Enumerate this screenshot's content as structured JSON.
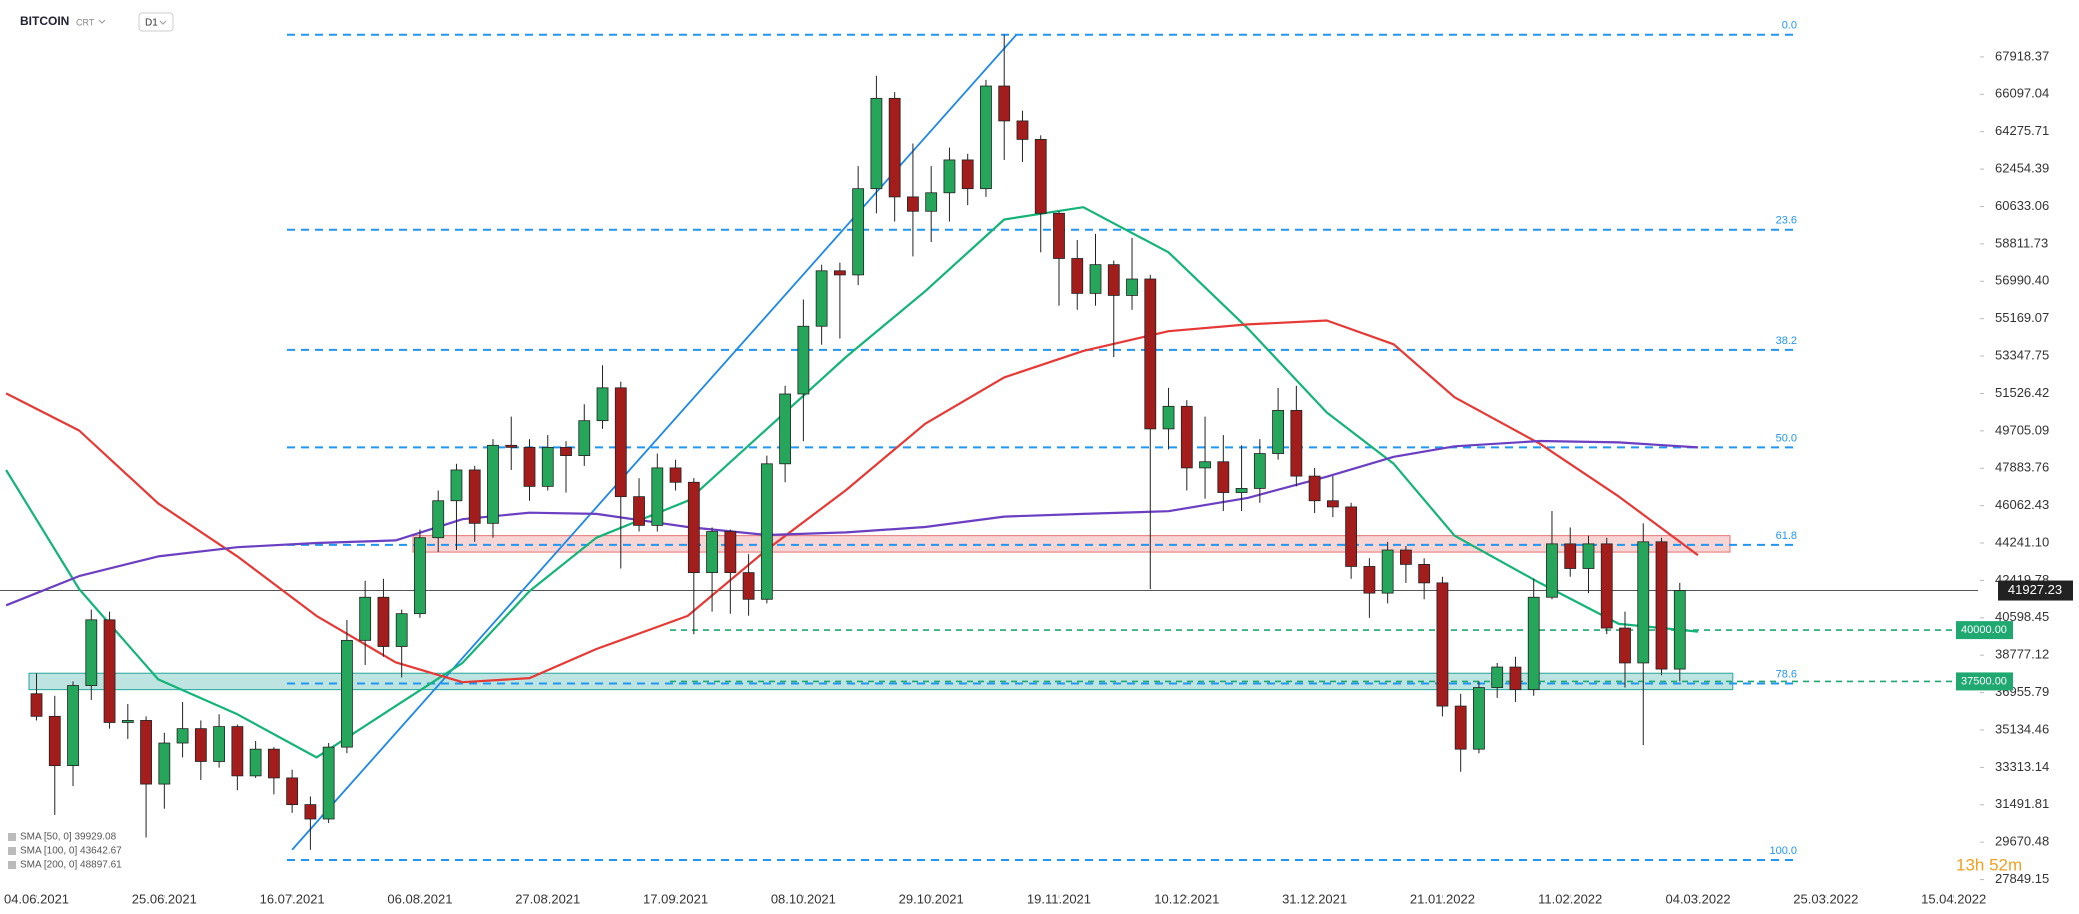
{
  "header": {
    "symbol": "BITCOIN",
    "kind": "CRT",
    "interval": "D1",
    "timer": "13h 52m"
  },
  "chart_data": {
    "type": "candlestick",
    "xlim": [
      "29.05.2021",
      "19.04.2022"
    ],
    "xticks": [
      "04.06.2021",
      "25.06.2021",
      "16.07.2021",
      "06.08.2021",
      "27.08.2021",
      "17.09.2021",
      "08.10.2021",
      "29.10.2021",
      "19.11.2021",
      "10.12.2021",
      "31.12.2021",
      "21.01.2022",
      "11.02.2022",
      "04.03.2022",
      "25.03.2022",
      "15.04.2022"
    ],
    "ylim": [
      27000,
      70690
    ],
    "yticks": [
      27849.15,
      29670.48,
      31491.81,
      33313.14,
      35134.46,
      36955.79,
      38777.12,
      40598.45,
      42419.78,
      {
        "value": 44241.1,
        "label": "44241.10"
      },
      46062.43,
      47883.76,
      49705.09,
      51526.42,
      53347.75,
      55169.07,
      {
        "value": 56990.4,
        "label": "56990.40"
      },
      58811.73,
      60633.06,
      62454.39,
      64275.71,
      66097.04,
      67918.37
    ],
    "up_color": "#26a65b",
    "down_color": "#a31d1d",
    "candles": {
      "dates": [
        "04.06.2021",
        "07.06.2021",
        "10.06.2021",
        "13.06.2021",
        "16.06.2021",
        "19.06.2021",
        "22.06.2021",
        "25.06.2021",
        "28.06.2021",
        "01.07.2021",
        "04.07.2021",
        "07.07.2021",
        "10.07.2021",
        "13.07.2021",
        "16.07.2021",
        "19.07.2021",
        "22.07.2021",
        "25.07.2021",
        "28.07.2021",
        "31.07.2021",
        "03.08.2021",
        "06.08.2021",
        "09.08.2021",
        "12.08.2021",
        "15.08.2021",
        "18.08.2021",
        "21.08.2021",
        "24.08.2021",
        "27.08.2021",
        "30.08.2021",
        "02.09.2021",
        "05.09.2021",
        "08.09.2021",
        "11.09.2021",
        "14.09.2021",
        "17.09.2021",
        "20.09.2021",
        "23.09.2021",
        "26.09.2021",
        "29.09.2021",
        "02.10.2021",
        "05.10.2021",
        "08.10.2021",
        "11.10.2021",
        "14.10.2021",
        "17.10.2021",
        "20.10.2021",
        "23.10.2021",
        "26.10.2021",
        "29.10.2021",
        "01.11.2021",
        "04.11.2021",
        "07.11.2021",
        "10.11.2021",
        "13.11.2021",
        "16.11.2021",
        "19.11.2021",
        "22.11.2021",
        "25.11.2021",
        "28.11.2021",
        "01.12.2021",
        "04.12.2021",
        "07.12.2021",
        "10.12.2021",
        "13.12.2021",
        "16.12.2021",
        "19.12.2021",
        "22.12.2021",
        "25.12.2021",
        "28.12.2021",
        "31.12.2021",
        "03.01.2022",
        "06.01.2022",
        "09.01.2022",
        "12.01.2022",
        "15.01.2022",
        "18.01.2022",
        "21.01.2022",
        "24.01.2022",
        "27.01.2022",
        "30.01.2022",
        "02.02.2022",
        "05.02.2022",
        "08.02.2022",
        "11.02.2022",
        "14.02.2022",
        "17.02.2022",
        "20.02.2022",
        "23.02.2022",
        "26.02.2022",
        "01.03.2022"
      ],
      "ohlc": [
        [
          36900,
          37900,
          35600,
          35800
        ],
        [
          35800,
          36800,
          31000,
          33400
        ],
        [
          33400,
          37500,
          32400,
          37300
        ],
        [
          37300,
          41000,
          36600,
          40500
        ],
        [
          40500,
          40900,
          35200,
          35500
        ],
        [
          35500,
          36400,
          34700,
          35600
        ],
        [
          35600,
          35800,
          29900,
          32500
        ],
        [
          32500,
          35000,
          31300,
          34500
        ],
        [
          34500,
          36500,
          33800,
          35200
        ],
        [
          35200,
          35600,
          32700,
          33600
        ],
        [
          33600,
          35900,
          33300,
          35300
        ],
        [
          35300,
          35400,
          32200,
          32900
        ],
        [
          32900,
          34600,
          32800,
          34200
        ],
        [
          34200,
          34300,
          32000,
          32800
        ],
        [
          32800,
          33200,
          31100,
          31500
        ],
        [
          31500,
          31900,
          29300,
          30800
        ],
        [
          30800,
          34500,
          30600,
          34300
        ],
        [
          34300,
          40500,
          34000,
          39500
        ],
        [
          39500,
          42400,
          38300,
          41600
        ],
        [
          41600,
          42500,
          38700,
          39200
        ],
        [
          39200,
          41000,
          37700,
          40800
        ],
        [
          40800,
          44900,
          40600,
          44500
        ],
        [
          44500,
          46800,
          43800,
          46300
        ],
        [
          46300,
          48100,
          43900,
          47800
        ],
        [
          47800,
          48000,
          44300,
          45200
        ],
        [
          45200,
          49300,
          44500,
          49000
        ],
        [
          49000,
          50400,
          47800,
          48900
        ],
        [
          48900,
          49300,
          46300,
          47000
        ],
        [
          47000,
          49500,
          46800,
          48900
        ],
        [
          48900,
          49200,
          46700,
          48500
        ],
        [
          48500,
          51000,
          48000,
          50200
        ],
        [
          50200,
          52900,
          49800,
          51800
        ],
        [
          51800,
          52100,
          43000,
          46500
        ],
        [
          46500,
          47400,
          44800,
          45100
        ],
        [
          45100,
          48600,
          44800,
          47900
        ],
        [
          47900,
          48300,
          46800,
          47200
        ],
        [
          47200,
          47400,
          39800,
          42800
        ],
        [
          42800,
          45000,
          40900,
          44800
        ],
        [
          44800,
          44900,
          40800,
          42800
        ],
        [
          42800,
          43700,
          40700,
          41500
        ],
        [
          41500,
          48500,
          41300,
          48100
        ],
        [
          48100,
          51900,
          47200,
          51500
        ],
        [
          51500,
          56100,
          49200,
          54800
        ],
        [
          54800,
          57800,
          53900,
          57500
        ],
        [
          57500,
          57900,
          54200,
          57300
        ],
        [
          57300,
          62600,
          56800,
          61500
        ],
        [
          61500,
          67000,
          60300,
          65900
        ],
        [
          65900,
          66200,
          59900,
          61100
        ],
        [
          61100,
          63700,
          58200,
          60400
        ],
        [
          60400,
          62600,
          58900,
          61300
        ],
        [
          61300,
          63500,
          59900,
          62900
        ],
        [
          62900,
          63200,
          60700,
          61500
        ],
        [
          61500,
          66800,
          61100,
          66500
        ],
        [
          66500,
          69000,
          62900,
          64800
        ],
        [
          64800,
          65300,
          62800,
          63900
        ],
        [
          63900,
          64100,
          58400,
          60300
        ],
        [
          60300,
          60400,
          55800,
          58100
        ],
        [
          58100,
          59000,
          55600,
          56400
        ],
        [
          56400,
          59300,
          55800,
          57800
        ],
        [
          57800,
          58000,
          53300,
          56300
        ],
        [
          56300,
          59100,
          55600,
          57100
        ],
        [
          57100,
          57300,
          42000,
          49800
        ],
        [
          49800,
          51800,
          48800,
          50900
        ],
        [
          50900,
          51200,
          46800,
          47900
        ],
        [
          47900,
          50400,
          46400,
          48200
        ],
        [
          48200,
          49500,
          45800,
          46700
        ],
        [
          46700,
          49000,
          45800,
          46900
        ],
        [
          46900,
          49300,
          46200,
          48600
        ],
        [
          48600,
          51800,
          48300,
          50700
        ],
        [
          50700,
          51900,
          47000,
          47500
        ],
        [
          47500,
          47900,
          45700,
          46300
        ],
        [
          46300,
          47500,
          45500,
          46000
        ],
        [
          46000,
          46200,
          42500,
          43100
        ],
        [
          43100,
          43500,
          40600,
          41800
        ],
        [
          41800,
          44300,
          41300,
          43900
        ],
        [
          43900,
          44100,
          42300,
          43200
        ],
        [
          43200,
          43500,
          41500,
          42300
        ],
        [
          42300,
          42600,
          35800,
          36300
        ],
        [
          36300,
          36900,
          33100,
          34200
        ],
        [
          34200,
          37500,
          34000,
          37200
        ],
        [
          37200,
          38400,
          36700,
          38200
        ],
        [
          38200,
          38700,
          36500,
          37100
        ],
        [
          37100,
          42500,
          36800,
          41600
        ],
        [
          41600,
          45800,
          41500,
          44200
        ],
        [
          44200,
          45000,
          42600,
          43000
        ],
        [
          43000,
          44600,
          41800,
          44200
        ],
        [
          44200,
          44500,
          39800,
          40100
        ],
        [
          40100,
          40900,
          37200,
          38400
        ],
        [
          38400,
          45200,
          34400,
          44300
        ],
        [
          44300,
          44500,
          37800,
          38100
        ],
        [
          38100,
          42300,
          37500,
          41927.23
        ]
      ]
    },
    "sma": [
      {
        "name": "SMA [50, 0] 39929.08",
        "color": "#14b479",
        "dates": [
          "30.05.2021",
          "11.06.2021",
          "24.06.2021",
          "07.07.2021",
          "20.07.2021",
          "02.08.2021",
          "13.08.2021",
          "24.08.2021",
          "04.09.2021",
          "19.09.2021",
          "02.10.2021",
          "15.10.2021",
          "28.10.2021",
          "10.11.2021",
          "23.11.2021",
          "07.12.2021",
          "20.12.2021",
          "02.01.2022",
          "13.01.2022",
          "23.01.2022",
          "06.02.2022",
          "19.02.2022",
          "04.03.2022"
        ],
        "values": [
          47800,
          42000,
          37600,
          35900,
          33800,
          36300,
          38400,
          41900,
          44500,
          46300,
          49800,
          53300,
          56500,
          60000,
          60600,
          58400,
          54700,
          50600,
          48100,
          44600,
          42300,
          40300,
          39929.08
        ]
      },
      {
        "name": "SMA [100, 0] 43642.67",
        "color": "#e53935",
        "dates": [
          "30.05.2021",
          "11.06.2021",
          "24.06.2021",
          "07.07.2021",
          "20.07.2021",
          "02.08.2021",
          "13.08.2021",
          "24.08.2021",
          "04.09.2021",
          "19.09.2021",
          "02.10.2021",
          "15.10.2021",
          "28.10.2021",
          "10.11.2021",
          "23.11.2021",
          "07.12.2021",
          "20.12.2021",
          "02.01.2022",
          "13.01.2022",
          "23.01.2022",
          "06.02.2022",
          "19.02.2022",
          "04.03.2022"
        ],
        "values": [
          51530,
          49720,
          46170,
          43590,
          40690,
          38430,
          37460,
          37660,
          39080,
          40690,
          43920,
          46820,
          50050,
          52310,
          53600,
          54560,
          54890,
          55080,
          53920,
          51340,
          49080,
          46500,
          43642.67
        ]
      },
      {
        "name": "SMA [200, 0] 48897.61",
        "color": "#6a3fc1",
        "dates": [
          "30.05.2021",
          "11.06.2021",
          "24.06.2021",
          "07.07.2021",
          "20.07.2021",
          "02.08.2021",
          "13.08.2021",
          "24.08.2021",
          "04.09.2021",
          "19.09.2021",
          "02.10.2021",
          "15.10.2021",
          "28.10.2021",
          "10.11.2021",
          "23.11.2021",
          "07.12.2021",
          "20.12.2021",
          "02.01.2022",
          "13.01.2022",
          "23.01.2022",
          "06.02.2022",
          "19.02.2022",
          "04.03.2022"
        ],
        "values": [
          41210,
          42630,
          43590,
          44040,
          44240,
          44370,
          45400,
          45720,
          45660,
          45020,
          44630,
          44760,
          45020,
          45530,
          45660,
          45790,
          46440,
          47470,
          48440,
          48950,
          49210,
          49140,
          48897.61
        ]
      }
    ],
    "trendline": {
      "dates": [
        "16.07.2021",
        "12.11.2021"
      ],
      "values": [
        29300,
        69000
      ],
      "color": "#1e88e5"
    },
    "fibonacci": {
      "levels": [
        {
          "value": 0,
          "label": "0.0"
        },
        23.6,
        38.2,
        {
          "value": 50,
          "label": "50.0"
        },
        61.8,
        78.6,
        {
          "value": 100,
          "label": "100.0"
        }
      ],
      "prices": [
        69000,
        59500,
        53650,
        48900,
        44150,
        37400,
        28800
      ],
      "color": "#2196f3"
    },
    "zones": [
      {
        "values": [
          43800,
          44600
        ],
        "color": "#e57373"
      },
      {
        "values": [
          37100,
          37900
        ],
        "color": "#26a69a"
      }
    ],
    "current_price": 41927.23,
    "levels": {
      "values": [
        40000,
        37500
      ],
      "value_labels": [
        "40000.00",
        "37500.00"
      ],
      "color": "#1fa971"
    }
  }
}
